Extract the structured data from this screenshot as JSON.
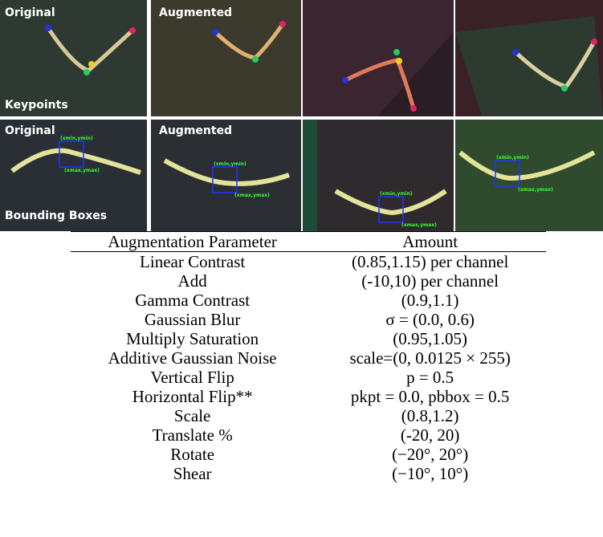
{
  "figure": {
    "keypoints_row": {
      "original_label": "Original",
      "augmented_label": "Augmented",
      "row_label": "Keypoints"
    },
    "bbox_row": {
      "original_label": "Original",
      "augmented_label": "Augmented",
      "row_label": "Bounding Boxes",
      "min_label": "(xmin,ymin)",
      "max_label": "(xmax,ymax)"
    }
  },
  "table": {
    "columns": [
      "Augmentation Parameter",
      "Amount"
    ],
    "rows": [
      [
        "Linear Contrast",
        "(0.85,1.15) per channel"
      ],
      [
        "Add",
        "(-10,10) per channel"
      ],
      [
        "Gamma Contrast",
        "(0.9,1.1)"
      ],
      [
        "Gaussian Blur",
        "σ = (0.0, 0.6)"
      ],
      [
        "Multiply Saturation",
        "(0.95,1.05)"
      ],
      [
        "Additive Gaussian Noise",
        "scale=(0, 0.0125 × 255)"
      ],
      [
        "Vertical Flip",
        "p = 0.5"
      ],
      [
        "Horizontal Flip**",
        "pkpt = 0.0, pbbox = 0.5"
      ],
      [
        "Scale",
        "(0.8,1.2)"
      ],
      [
        "Translate %",
        "(-20, 20)"
      ],
      [
        "Rotate",
        "(−20°, 20°)"
      ],
      [
        "Shear",
        "(−10°, 10°)"
      ]
    ]
  }
}
